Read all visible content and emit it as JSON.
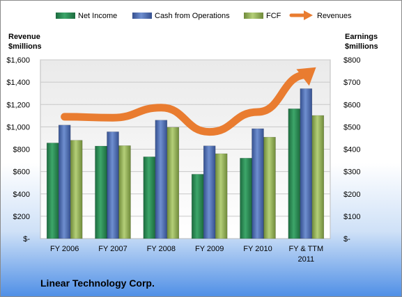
{
  "chart_data": {
    "type": "bar",
    "categories": [
      "FY 2006",
      "FY 2007",
      "FY 2008",
      "FY 2009",
      "FY 2010",
      "FY & TTM 2011"
    ],
    "category_lines": [
      [
        "FY 2006"
      ],
      [
        "FY 2007"
      ],
      [
        "FY 2008"
      ],
      [
        "FY 2009"
      ],
      [
        "FY 2010"
      ],
      [
        "FY & TTM",
        "2011"
      ]
    ],
    "series": [
      {
        "name": "Net Income",
        "axis": "right",
        "color": "#2e8b57",
        "values": [
          428,
          414,
          366,
          288,
          360,
          581
        ]
      },
      {
        "name": "Cash from Operations",
        "axis": "right",
        "color": "#4f6eb4",
        "values": [
          508,
          478,
          530,
          415,
          492,
          671
        ]
      },
      {
        "name": "FCF",
        "axis": "right",
        "color": "#9bbb59",
        "values": [
          440,
          416,
          498,
          380,
          454,
          551
        ]
      }
    ],
    "line_series": {
      "name": "Revenues",
      "axis": "left",
      "color": "#e97c30",
      "values": [
        1090,
        1082,
        1172,
        955,
        1133,
        1465
      ]
    },
    "left_axis": {
      "title_lines": [
        "Revenue",
        "$millions"
      ],
      "ylim": [
        0,
        1600
      ],
      "ticks": [
        0,
        200,
        400,
        600,
        800,
        1000,
        1200,
        1400,
        1600
      ],
      "tick_labels": [
        "$-",
        "$200",
        "$400",
        "$600",
        "$800",
        "$1,000",
        "$1,200",
        "$1,400",
        "$1,600"
      ]
    },
    "right_axis": {
      "title_lines": [
        "Earnings",
        "$millions"
      ],
      "ylim": [
        0,
        800
      ],
      "ticks": [
        0,
        100,
        200,
        300,
        400,
        500,
        600,
        700,
        800
      ],
      "tick_labels": [
        "$-",
        "$100",
        "$200",
        "$300",
        "$400",
        "$500",
        "$600",
        "$700",
        "$800"
      ]
    },
    "legend": {
      "position": "top",
      "items": [
        "Net Income",
        "Cash from Operations",
        "FCF",
        "Revenues"
      ]
    },
    "grid": true,
    "company": "Linear Technology Corp."
  }
}
